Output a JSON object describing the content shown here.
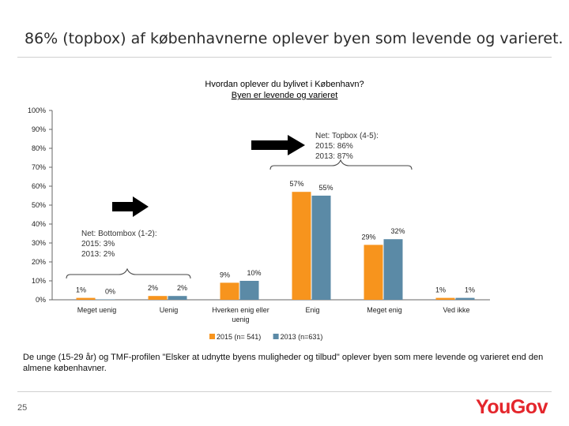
{
  "headline": "86% (topbox) af københavnerne oplever byen som levende og varieret.",
  "footnote": "De unge (15-29 år) og TMF-profilen \"Elsker at udnytte byens muligheder og tilbud\" oplever byen som mere levende og varieret end den almene københavner.",
  "page_number": "25",
  "logo_text": "YouGov",
  "chart_data": {
    "type": "bar",
    "title_line1": "Hvordan oplever du bylivet i København?",
    "title_line2": "Byen er levende og varieret",
    "categories": [
      "Meget uenig",
      "Uenig",
      "Hverken enig eller uenig",
      "Enig",
      "Meget enig",
      "Ved ikke"
    ],
    "series": [
      {
        "name": "2015 (n= 541)",
        "values": [
          1,
          2,
          9,
          57,
          29,
          1
        ],
        "labels": [
          "1%",
          "2%",
          "9%",
          "57%",
          "29%",
          "1%"
        ],
        "color": "#f7941d"
      },
      {
        "name": "2013 (n=631)",
        "values": [
          0,
          2,
          10,
          55,
          32,
          1
        ],
        "labels": [
          "0%",
          "2%",
          "10%",
          "55%",
          "32%",
          "1%"
        ],
        "color": "#5b8aa6"
      }
    ],
    "ylim": [
      0,
      100
    ],
    "yticks": [
      "0%",
      "10%",
      "20%",
      "30%",
      "40%",
      "50%",
      "60%",
      "70%",
      "80%",
      "90%",
      "100%"
    ],
    "legend_position": "bottom",
    "annotations": {
      "topbox": [
        "Net: Topbox (4-5):",
        "2015: 86%",
        "2013: 87%"
      ],
      "bottombox": [
        "Net: Bottombox (1-2):",
        "2015: 3%",
        "2013: 2%"
      ]
    },
    "axis_color": "#666666",
    "arrow_color": "#000000"
  }
}
